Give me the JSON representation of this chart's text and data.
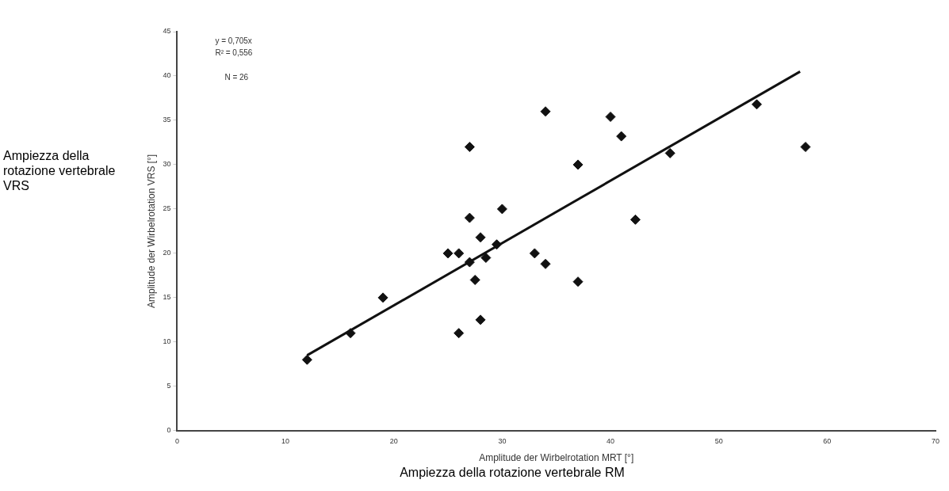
{
  "chart_data": {
    "type": "scatter",
    "xlabel": "Amplitude der Wirbelrotation MRT [°]",
    "ylabel": "Amplitude der Wirbelrotation VRS [°]",
    "annotations": [
      "y = 0,705x",
      "R² = 0,556",
      "N = 26",
      "Ampiezza della rotazione vertebrale VRS",
      "Ampiezza della rotazione vertebrale RM"
    ],
    "series": [
      {
        "color": "#111111",
        "x": [
          12,
          16,
          19,
          25,
          26,
          27,
          28,
          30,
          29.5,
          27,
          28.5,
          27.5,
          28,
          26,
          27,
          34,
          40,
          41,
          37,
          53.5,
          45.5,
          58,
          42.3,
          33,
          34,
          37
        ],
        "values": [
          8,
          11,
          15,
          20,
          20,
          24,
          21.8,
          25,
          21,
          19,
          19.5,
          17,
          12.5,
          11,
          32,
          36,
          35.4,
          33.2,
          30,
          36.8,
          31.3,
          32,
          23.8,
          20,
          18.8,
          16.8
        ]
      },
      {
        "type": "line",
        "marker": "none",
        "color": "#111111",
        "x": [
          12,
          57.5
        ],
        "values": [
          8.5,
          40.5
        ]
      }
    ],
    "xlim": [
      0,
      70
    ],
    "xticks": [
      0,
      10,
      20,
      30,
      40,
      50,
      60,
      70
    ],
    "ylim": [
      0,
      45
    ],
    "yticks": [
      0,
      5,
      10,
      15,
      20,
      25,
      30,
      35,
      40,
      45
    ],
    "grid": false,
    "legend": false,
    "marker": "diamond"
  }
}
